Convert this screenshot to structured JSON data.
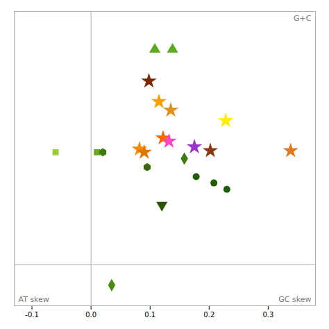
{
  "chart_data": {
    "type": "scatter",
    "series": [
      {
        "marker": "triangle-up",
        "color": "#5aaa20",
        "x": [
          0.108,
          0.138
        ],
        "values": [
          0.68,
          0.68
        ]
      },
      {
        "marker": "star",
        "colors": [
          "#7b2800",
          "#f5a000",
          "#e09020",
          "#ffee00",
          "#ff6600",
          "#ff44cc",
          "#9933cc",
          "#ff8800",
          "#dd7700",
          "#8b3a10",
          "#e07820"
        ],
        "x": [
          0.098,
          0.115,
          0.135,
          0.228,
          0.122,
          0.132,
          0.175,
          0.082,
          0.09,
          0.202,
          0.338
        ],
        "values": [
          0.58,
          0.515,
          0.488,
          0.455,
          0.4,
          0.39,
          0.372,
          0.365,
          0.355,
          0.36,
          0.36
        ]
      },
      {
        "marker": "square",
        "colors": [
          "#9acd32",
          "#6aaa20"
        ],
        "x": [
          -0.06,
          0.01
        ],
        "values": [
          0.355,
          0.355
        ]
      },
      {
        "marker": "hexagon",
        "color": "#3d7a10",
        "x": [
          0.02
        ],
        "values": [
          0.355
        ]
      },
      {
        "marker": "diamond",
        "color": "#3d7a10",
        "x": [
          0.158
        ],
        "values": [
          0.335
        ]
      },
      {
        "marker": "hexagon",
        "color": "#3a6a10",
        "x": [
          0.095
        ],
        "values": [
          0.308
        ]
      },
      {
        "marker": "circle",
        "color": "#1e5c00",
        "x": [
          0.178,
          0.208,
          0.23
        ],
        "values": [
          0.278,
          0.258,
          0.238
        ]
      },
      {
        "marker": "triangle-down",
        "color": "#2d5500",
        "x": [
          0.12
        ],
        "values": [
          0.188
        ]
      },
      {
        "marker": "diamond",
        "color": "#4a8a10",
        "x": [
          0.035
        ],
        "values": [
          -0.065
        ]
      }
    ],
    "xlim": [
      -0.13,
      0.38
    ],
    "ylim": [
      -0.13,
      0.8
    ],
    "xticks": [
      -0.1,
      {
        "value": 0,
        "label": "0.0"
      },
      0.1,
      0.2,
      0.3
    ],
    "tick_labels": "x",
    "annotations": [
      "G+C",
      "AT skew",
      "GC skew"
    ]
  }
}
